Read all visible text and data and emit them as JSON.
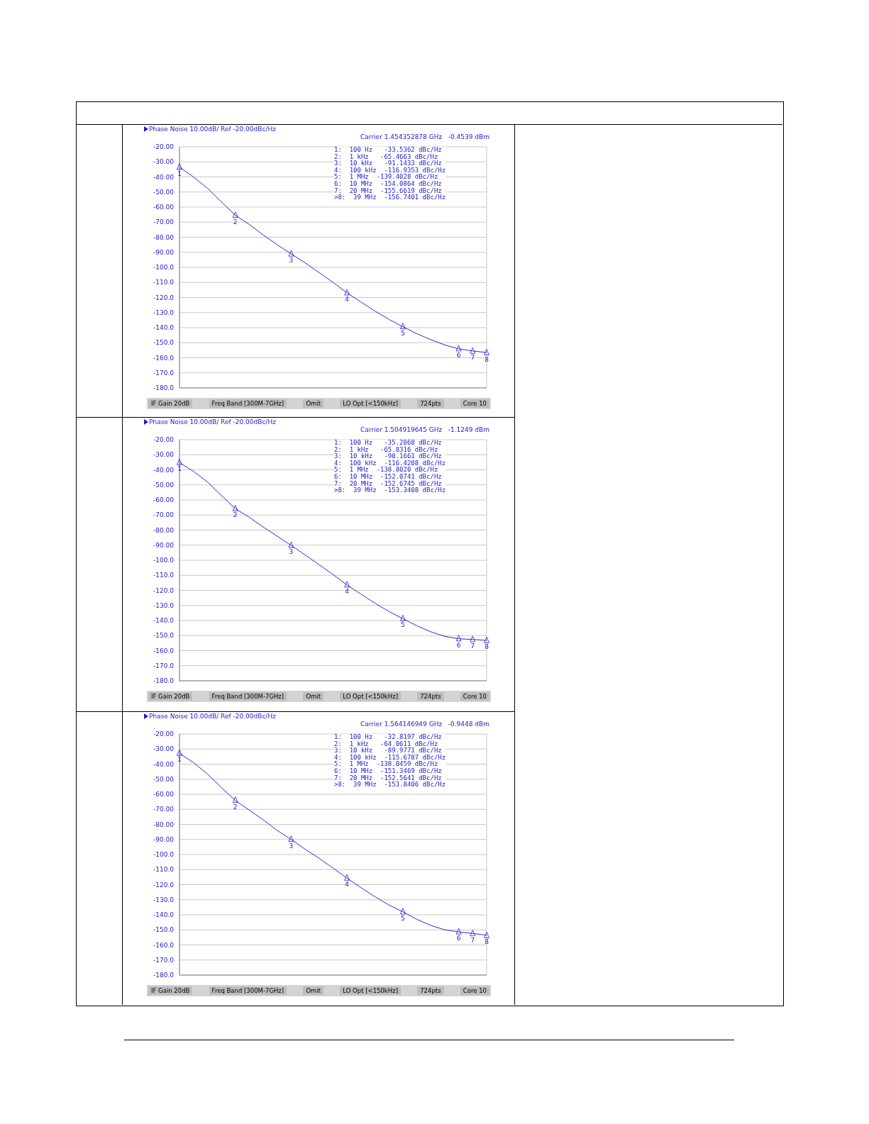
{
  "chart_data": [
    {
      "type": "line",
      "title": "Phase Noise 10.00dB/ Ref -20.00dBc/Hz",
      "subtitle": "Carrier 1.454352878 GHz   -0.4539 dBm",
      "grid": true,
      "tick_labels": "y",
      "line_style": "solid",
      "ylim": [
        -180,
        -20
      ],
      "yticks": [
        {
          "value": -20,
          "label": "-20.00"
        },
        {
          "value": -30,
          "label": "-30.00"
        },
        {
          "value": -40,
          "label": "-40.00"
        },
        {
          "value": -50,
          "label": "-50.00"
        },
        {
          "value": -60,
          "label": "-60.00"
        },
        {
          "value": -70,
          "label": "-70.00"
        },
        {
          "value": -80,
          "label": "-80.00"
        },
        {
          "value": -90,
          "label": "-90.00"
        },
        {
          "value": -100,
          "label": "-100.0"
        },
        {
          "value": -110,
          "label": "-110.0"
        },
        {
          "value": -120,
          "label": "-120.0"
        },
        {
          "value": -130,
          "label": "-130.0"
        },
        {
          "value": -140,
          "label": "-140.0"
        },
        {
          "value": -150,
          "label": "-150.0"
        },
        {
          "value": -160,
          "label": "-160.0"
        },
        {
          "value": -170,
          "label": "-170.0"
        },
        {
          "value": -180,
          "label": "-180.0"
        }
      ],
      "categories": [
        null,
        null,
        null,
        null,
        null,
        null,
        null,
        null,
        null,
        null,
        null,
        null,
        null,
        null,
        null,
        null,
        null,
        null,
        null,
        null,
        null,
        null,
        null
      ],
      "series": [
        {
          "color": "#2b2bd6",
          "values": [
            -33.5,
            -40,
            -47.5,
            -56.5,
            -65.5,
            -71.5,
            -78.5,
            -85,
            -91.1,
            -97,
            -103.5,
            -110,
            -116.9,
            -123,
            -129,
            -134.5,
            -139.4,
            -144,
            -148,
            -151.5,
            -154.1,
            -155.5,
            -156.5
          ]
        }
      ],
      "annotations": [
        "1:  100 Hz   -33.5362 dBc/Hz",
        "2:  1 kHz   -65.4663 dBc/Hz",
        "3:  10 kHz   -91.1433 dBc/Hz",
        "4:  100 kHz  -116.9353 dBc/Hz",
        "5:  1 MHz  -139.4028 dBc/Hz",
        "6:  10 MHz  -154.0864 dBc/Hz",
        "7:  20 MHz  -155.6619 dBc/Hz",
        ">8:  39 MHz  -156.7401 dBc/Hz",
        "IF Gain 20dB",
        "Freq Band [300M-7GHz]",
        "Omit",
        "LO Opt [<150kHz]",
        "724pts",
        "Core 10",
        {
          "text": "1",
          "y": -33.5362
        },
        {
          "text": "2",
          "y": -65.4663
        },
        {
          "text": "3",
          "y": -91.1433
        },
        {
          "text": "4",
          "y": -116.9353
        },
        {
          "text": "5",
          "y": -139.4028
        },
        {
          "text": "6",
          "y": -154.0864
        },
        {
          "text": "7",
          "y": -155.6619
        },
        {
          "text": "8",
          "y": -156.7401
        }
      ]
    },
    {
      "type": "line",
      "title": "Phase Noise 10.00dB/ Ref -20.00dBc/Hz",
      "subtitle": "Carrier 1.504919645 GHz   -1.1249 dBm",
      "grid": true,
      "tick_labels": "y",
      "line_style": "solid",
      "ylim": [
        -180,
        -20
      ],
      "yticks": [
        {
          "value": -20,
          "label": "-20.00"
        },
        {
          "value": -30,
          "label": "-30.00"
        },
        {
          "value": -40,
          "label": "-40.00"
        },
        {
          "value": -50,
          "label": "-50.00"
        },
        {
          "value": -60,
          "label": "-60.00"
        },
        {
          "value": -70,
          "label": "-70.00"
        },
        {
          "value": -80,
          "label": "-80.00"
        },
        {
          "value": -90,
          "label": "-90.00"
        },
        {
          "value": -100,
          "label": "-100.0"
        },
        {
          "value": -110,
          "label": "-110.0"
        },
        {
          "value": -120,
          "label": "-120.0"
        },
        {
          "value": -130,
          "label": "-130.0"
        },
        {
          "value": -140,
          "label": "-140.0"
        },
        {
          "value": -150,
          "label": "-150.0"
        },
        {
          "value": -160,
          "label": "-160.0"
        },
        {
          "value": -170,
          "label": "-170.0"
        },
        {
          "value": -180,
          "label": "-180.0"
        }
      ],
      "categories": [
        null,
        null,
        null,
        null,
        null,
        null,
        null,
        null,
        null,
        null,
        null,
        null,
        null,
        null,
        null,
        null,
        null,
        null,
        null,
        null,
        null,
        null,
        null
      ],
      "series": [
        {
          "color": "#2b2bd6",
          "values": [
            -35.2,
            -41,
            -48,
            -57,
            -65.8,
            -71.5,
            -78,
            -84,
            -90.2,
            -96.5,
            -103,
            -109.5,
            -116.4,
            -122.5,
            -128.5,
            -134,
            -138.8,
            -143.5,
            -147.5,
            -150.5,
            -152.1,
            -152.6,
            -153.2
          ]
        }
      ],
      "annotations": [
        "1:  100 Hz   -35.2068 dBc/Hz",
        "2:  1 kHz   -65.8316 dBc/Hz",
        "3:  10 kHz   -90.1661 dBc/Hz",
        "4:  100 kHz  -116.4208 dBc/Hz",
        "5:  1 MHz  -138.8020 dBc/Hz",
        "6:  10 MHz  -152.0741 dBc/Hz",
        "7:  20 MHz  -152.6745 dBc/Hz",
        ">8:  39 MHz  -153.3408 dBc/Hz",
        "IF Gain 20dB",
        "Freq Band [300M-7GHz]",
        "Omit",
        "LO Opt [<150kHz]",
        "724pts",
        "Core 10",
        {
          "text": "1",
          "y": -35.2068
        },
        {
          "text": "2",
          "y": -65.8316
        },
        {
          "text": "3",
          "y": -90.1661
        },
        {
          "text": "4",
          "y": -116.4208
        },
        {
          "text": "5",
          "y": -138.802
        },
        {
          "text": "6",
          "y": -152.0741
        },
        {
          "text": "7",
          "y": -152.6745
        },
        {
          "text": "8",
          "y": -153.3408
        }
      ]
    },
    {
      "type": "line",
      "title": "Phase Noise 10.00dB/ Ref -20.00dBc/Hz",
      "subtitle": "Carrier 1.564146949 GHz   -0.9448 dBm",
      "grid": true,
      "tick_labels": "y",
      "line_style": "solid",
      "ylim": [
        -180,
        -20
      ],
      "yticks": [
        {
          "value": -20,
          "label": "-20.00"
        },
        {
          "value": -30,
          "label": "-30.00"
        },
        {
          "value": -40,
          "label": "-40.00"
        },
        {
          "value": -50,
          "label": "-50.00"
        },
        {
          "value": -60,
          "label": "-60.00"
        },
        {
          "value": -70,
          "label": "-70.00"
        },
        {
          "value": -80,
          "label": "-80.00"
        },
        {
          "value": -90,
          "label": "-90.00"
        },
        {
          "value": -100,
          "label": "-100.0"
        },
        {
          "value": -110,
          "label": "-110.0"
        },
        {
          "value": -120,
          "label": "-120.0"
        },
        {
          "value": -130,
          "label": "-130.0"
        },
        {
          "value": -140,
          "label": "-140.0"
        },
        {
          "value": -150,
          "label": "-150.0"
        },
        {
          "value": -160,
          "label": "-160.0"
        },
        {
          "value": -170,
          "label": "-170.0"
        },
        {
          "value": -180,
          "label": "-180.0"
        }
      ],
      "categories": [
        null,
        null,
        null,
        null,
        null,
        null,
        null,
        null,
        null,
        null,
        null,
        null,
        null,
        null,
        null,
        null,
        null,
        null,
        null,
        null,
        null,
        null,
        null
      ],
      "series": [
        {
          "color": "#2b2bd6",
          "values": [
            -32.8,
            -39,
            -46.5,
            -55.5,
            -64.1,
            -70.5,
            -77,
            -84,
            -90,
            -96.5,
            -102.5,
            -109,
            -115.7,
            -122,
            -128,
            -133.5,
            -138,
            -143,
            -147,
            -150,
            -151.3,
            -152.4,
            -153.5
          ]
        }
      ],
      "annotations": [
        "1:  100 Hz   -32.8197 dBc/Hz",
        "2:  1 kHz   -64.0611 dBc/Hz",
        "3:  10 kHz   -89.9771 dBc/Hz",
        "4:  100 kHz  -115.6787 dBc/Hz",
        "5:  1 MHz  -138.0459 dBc/Hz",
        "6:  10 MHz  -151.3469 dBc/Hz",
        "7:  20 MHz  -152.5641 dBc/Hz",
        ">8:  39 MHz  -153.8406 dBc/Hz",
        "IF Gain 20dB",
        "Freq Band [300M-7GHz]",
        "Omit",
        "LO Opt [<150kHz]",
        "724pts",
        "Core 10",
        {
          "text": "1",
          "y": -32.8197
        },
        {
          "text": "2",
          "y": -64.0611
        },
        {
          "text": "3",
          "y": -89.9771
        },
        {
          "text": "4",
          "y": -115.6787
        },
        {
          "text": "5",
          "y": -138.0459
        },
        {
          "text": "6",
          "y": -151.3469
        },
        {
          "text": "7",
          "y": -152.5641
        },
        {
          "text": "8",
          "y": -153.8406
        }
      ]
    }
  ]
}
